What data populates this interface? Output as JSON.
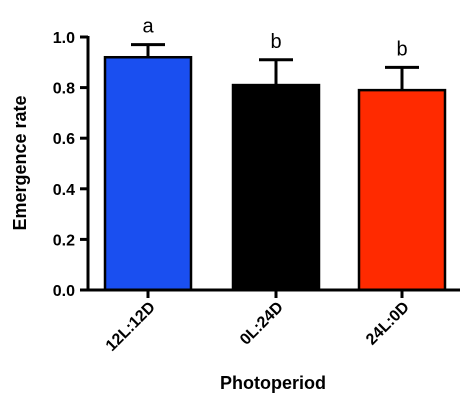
{
  "chart_data": {
    "type": "bar",
    "categories": [
      "12L:12D",
      "0L:24D",
      "24L:0D"
    ],
    "values": [
      0.92,
      0.81,
      0.79
    ],
    "errors": [
      0.05,
      0.1,
      0.09
    ],
    "significance": [
      "a",
      "b",
      "b"
    ],
    "colors": [
      "#1a4ff0",
      "#000000",
      "#ff2a00"
    ],
    "xlabel": "Photoperiod",
    "ylabel": "Emergence rate",
    "ylim": [
      0,
      1.0
    ],
    "yticks": [
      "0.0",
      "0.2",
      "0.4",
      "0.6",
      "0.8",
      "1.0"
    ],
    "ytick_values": [
      0.0,
      0.2,
      0.4,
      0.6,
      0.8,
      1.0
    ],
    "grid": false,
    "legend": "none"
  }
}
